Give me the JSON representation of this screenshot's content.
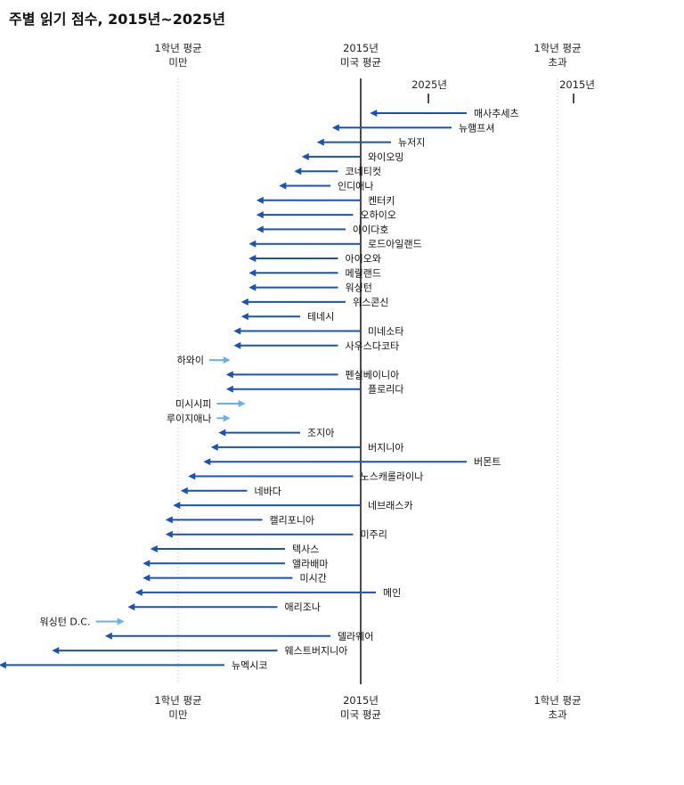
{
  "chart_data": {
    "type": "arrow",
    "title": "주별 읽기 점수, 2015년~2025년",
    "reference_lines": {
      "below_avg": {
        "line1": "1학년 평균",
        "line2": "미만"
      },
      "us_avg_2015": {
        "line1": "2015년",
        "line2": "미국 평균"
      },
      "above_avg": {
        "line1": "1학년 평균",
        "line2": "초과"
      }
    },
    "legend": {
      "year_2025": "2025년",
      "year_2015": "2015년"
    },
    "colors": {
      "decline": "#1a52b5",
      "improve": "#6ab0e6",
      "reference": "#111111",
      "grid": "#bbbbbb"
    },
    "series": [
      {
        "state": "매사추세츠",
        "score_2015": 222,
        "score_2025": 209
      },
      {
        "state": "뉴햄프셔",
        "score_2015": 220,
        "score_2025": 204
      },
      {
        "state": "뉴저지",
        "score_2015": 212,
        "score_2025": 202
      },
      {
        "state": "와이오밍",
        "score_2015": 208,
        "score_2025": 200
      },
      {
        "state": "코네티컷",
        "score_2015": 205,
        "score_2025": 199
      },
      {
        "state": "인디애나",
        "score_2015": 204,
        "score_2025": 197
      },
      {
        "state": "켄터키",
        "score_2015": 208,
        "score_2025": 194
      },
      {
        "state": "오하이오",
        "score_2015": 207,
        "score_2025": 194
      },
      {
        "state": "아이다호",
        "score_2015": 206,
        "score_2025": 194
      },
      {
        "state": "로드아일랜드",
        "score_2015": 208,
        "score_2025": 193
      },
      {
        "state": "아이오와",
        "score_2015": 205,
        "score_2025": 193
      },
      {
        "state": "메릴랜드",
        "score_2015": 205,
        "score_2025": 193
      },
      {
        "state": "워싱턴",
        "score_2015": 205,
        "score_2025": 193
      },
      {
        "state": "위스콘신",
        "score_2015": 206,
        "score_2025": 192
      },
      {
        "state": "테네시",
        "score_2015": 200,
        "score_2025": 192
      },
      {
        "state": "미네소타",
        "score_2015": 208,
        "score_2025": 191
      },
      {
        "state": "사우스다코타",
        "score_2015": 205,
        "score_2025": 191
      },
      {
        "state": "하와이",
        "score_2015": 188,
        "score_2025": 191
      },
      {
        "state": "펜실베이니아",
        "score_2015": 205,
        "score_2025": 190
      },
      {
        "state": "플로리다",
        "score_2015": 208,
        "score_2025": 190
      },
      {
        "state": "미시시피",
        "score_2015": 189,
        "score_2025": 193
      },
      {
        "state": "루이지애나",
        "score_2015": 189,
        "score_2025": 191
      },
      {
        "state": "조지아",
        "score_2015": 200,
        "score_2025": 189
      },
      {
        "state": "버지니아",
        "score_2015": 208,
        "score_2025": 188
      },
      {
        "state": "버몬트",
        "score_2015": 222,
        "score_2025": 187
      },
      {
        "state": "노스캐롤라이나",
        "score_2015": 207,
        "score_2025": 185
      },
      {
        "state": "네바다",
        "score_2015": 193,
        "score_2025": 184
      },
      {
        "state": "네브래스카",
        "score_2015": 208,
        "score_2025": 183
      },
      {
        "state": "캘리포니아",
        "score_2015": 195,
        "score_2025": 182
      },
      {
        "state": "미주리",
        "score_2015": 207,
        "score_2025": 182
      },
      {
        "state": "텍사스",
        "score_2015": 198,
        "score_2025": 180
      },
      {
        "state": "앨라배마",
        "score_2015": 198,
        "score_2025": 179
      },
      {
        "state": "미시간",
        "score_2015": 199,
        "score_2025": 179
      },
      {
        "state": "메인",
        "score_2015": 210,
        "score_2025": 178
      },
      {
        "state": "애리조나",
        "score_2015": 197,
        "score_2025": 177
      },
      {
        "state": "워싱턴 D.C.",
        "score_2015": 173,
        "score_2025": 177
      },
      {
        "state": "델라웨어",
        "score_2015": 204,
        "score_2025": 174
      },
      {
        "state": "웨스트버지니아",
        "score_2015": 197,
        "score_2025": 167
      },
      {
        "state": "뉴멕시코",
        "score_2015": 190,
        "score_2025": 160
      }
    ]
  }
}
